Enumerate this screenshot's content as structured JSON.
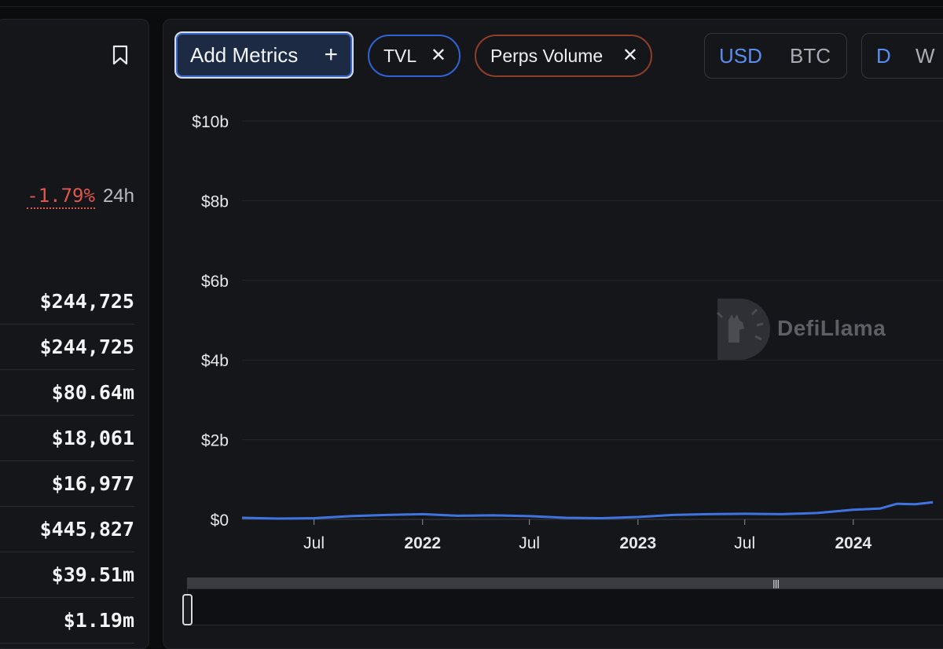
{
  "summary": {
    "change_value": "-1.79%",
    "change_period": "24h",
    "stats": [
      "$244,725",
      "$244,725",
      "$80.64m",
      "$18,061",
      "$16,977",
      "$445,827",
      "$39.51m",
      "$1.19m"
    ]
  },
  "toolbar": {
    "add_metrics_label": "Add Metrics",
    "chips": [
      {
        "label": "TVL",
        "color": "#2f63d6"
      },
      {
        "label": "Perps Volume",
        "color": "#8f3e2a"
      }
    ],
    "currency": {
      "options": [
        "USD",
        "BTC"
      ],
      "selected": "USD"
    },
    "period": {
      "options": [
        "D",
        "W"
      ],
      "selected": "D"
    }
  },
  "watermark": {
    "text": "DefiLlama"
  },
  "chart_data": {
    "type": "line",
    "y_ticks": [
      "$10b",
      "$8b",
      "$6b",
      "$4b",
      "$2b",
      "$0"
    ],
    "ylim": [
      0,
      10000000000
    ],
    "x_ticks": [
      {
        "label": "Jul",
        "date": "2021-07-01",
        "bold": false
      },
      {
        "label": "2022",
        "date": "2022-01-01",
        "bold": true
      },
      {
        "label": "Jul",
        "date": "2022-07-01",
        "bold": false
      },
      {
        "label": "2023",
        "date": "2023-01-01",
        "bold": true
      },
      {
        "label": "Jul",
        "date": "2023-07-01",
        "bold": false
      },
      {
        "label": "2024",
        "date": "2024-01-01",
        "bold": true
      }
    ],
    "grid": true,
    "series": [
      {
        "color": "#3f74e0",
        "x": [
          "2021-03-01",
          "2021-05-01",
          "2021-07-01",
          "2021-09-01",
          "2021-11-01",
          "2022-01-01",
          "2022-03-01",
          "2022-05-01",
          "2022-07-01",
          "2022-09-01",
          "2022-11-01",
          "2023-01-01",
          "2023-03-01",
          "2023-05-01",
          "2023-07-01",
          "2023-09-01",
          "2023-11-01",
          "2024-01-01",
          "2024-02-15",
          "2024-03-15",
          "2024-04-15",
          "2024-05-15"
        ],
        "values": [
          40000000,
          20000000,
          30000000,
          80000000,
          110000000,
          130000000,
          90000000,
          100000000,
          80000000,
          40000000,
          30000000,
          60000000,
          110000000,
          130000000,
          140000000,
          130000000,
          160000000,
          240000000,
          270000000,
          390000000,
          380000000,
          430000000
        ]
      }
    ]
  }
}
